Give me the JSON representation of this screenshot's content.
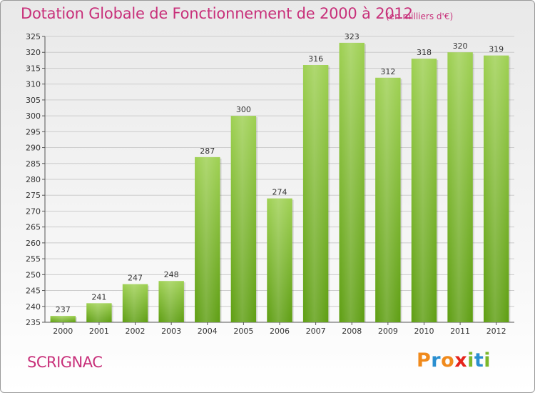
{
  "header": {
    "title": "Dotation Globale de Fonctionnement de 2000 à 2012",
    "unit": "(en milliers d'€)"
  },
  "footer": {
    "place": "SCRIGNAC",
    "logo_letters": [
      "P",
      "r",
      "o",
      "x",
      "i",
      "t",
      "i"
    ],
    "logo_colors": [
      "#f08a1c",
      "#2a8fd0",
      "#f08a1c",
      "#e5231b",
      "#7bb82b",
      "#2a8fd0",
      "#7bb82b"
    ]
  },
  "colors": {
    "bar_top": "#9ed052",
    "bar_bottom": "#5e9e12",
    "title": "#c8307a",
    "grid": "#cccccc"
  },
  "chart_data": {
    "type": "bar",
    "title": "Dotation Globale de Fonctionnement de 2000 à 2012",
    "subtitle": "(en milliers d'€)",
    "xlabel": "",
    "ylabel": "",
    "categories": [
      "2000",
      "2001",
      "2002",
      "2003",
      "2004",
      "2005",
      "2006",
      "2007",
      "2008",
      "2009",
      "2010",
      "2011",
      "2012"
    ],
    "values": [
      237,
      241,
      247,
      248,
      287,
      300,
      274,
      316,
      323,
      312,
      318,
      320,
      319
    ],
    "ylim": [
      235,
      325
    ],
    "ytick_step": 5,
    "grid": true
  }
}
